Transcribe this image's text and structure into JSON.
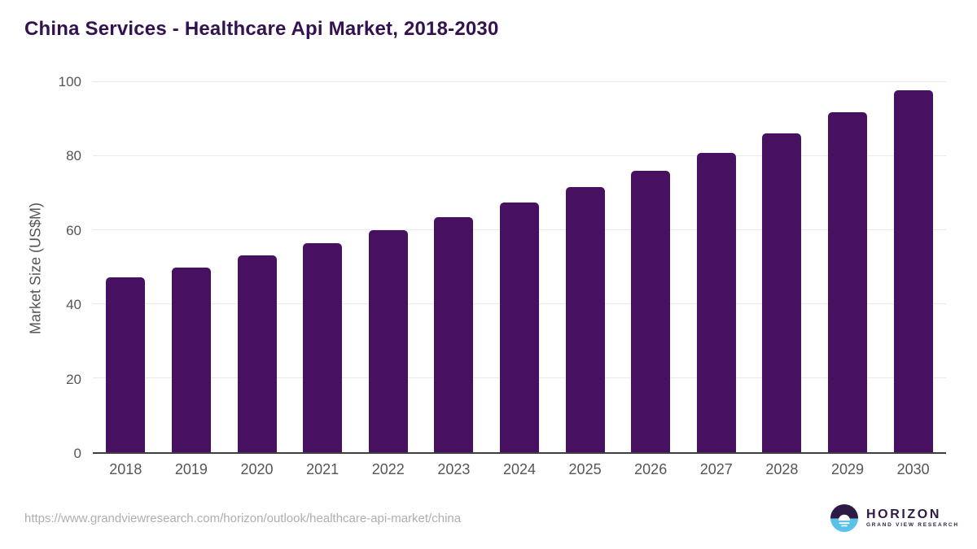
{
  "title": "China Services - Healthcare Api Market, 2018-2030",
  "chart_data": {
    "type": "bar",
    "title": "China Services - Healthcare Api Market, 2018-2030",
    "categories": [
      "2018",
      "2019",
      "2020",
      "2021",
      "2022",
      "2023",
      "2024",
      "2025",
      "2026",
      "2027",
      "2028",
      "2029",
      "2030"
    ],
    "values": [
      47.2,
      49.8,
      53.1,
      56.5,
      59.9,
      63.5,
      67.5,
      71.6,
      76.0,
      80.9,
      86.1,
      91.8,
      97.9
    ],
    "xlabel": "",
    "ylabel": "Market Size (US$M)",
    "ylim": [
      0,
      100
    ],
    "yticks": [
      0,
      20,
      40,
      60,
      80,
      100
    ],
    "grid": true,
    "legend": "none",
    "bar_color": "#481060"
  },
  "footer": {
    "source_url": "https://www.grandviewresearch.com/horizon/outlook/healthcare-api-market/china",
    "logo": {
      "wordmark": "HORIZON",
      "subtitle": "GRAND VIEW RESEARCH"
    }
  },
  "colors": {
    "title_text": "#321251",
    "bar": "#481060",
    "axis_text": "#55565a",
    "gridline": "#e9e9e9",
    "axis_line": "#3f3f3f",
    "url_text": "#aeaeae",
    "logo_dark": "#2d1a47",
    "logo_blue": "#5ac2e8"
  }
}
